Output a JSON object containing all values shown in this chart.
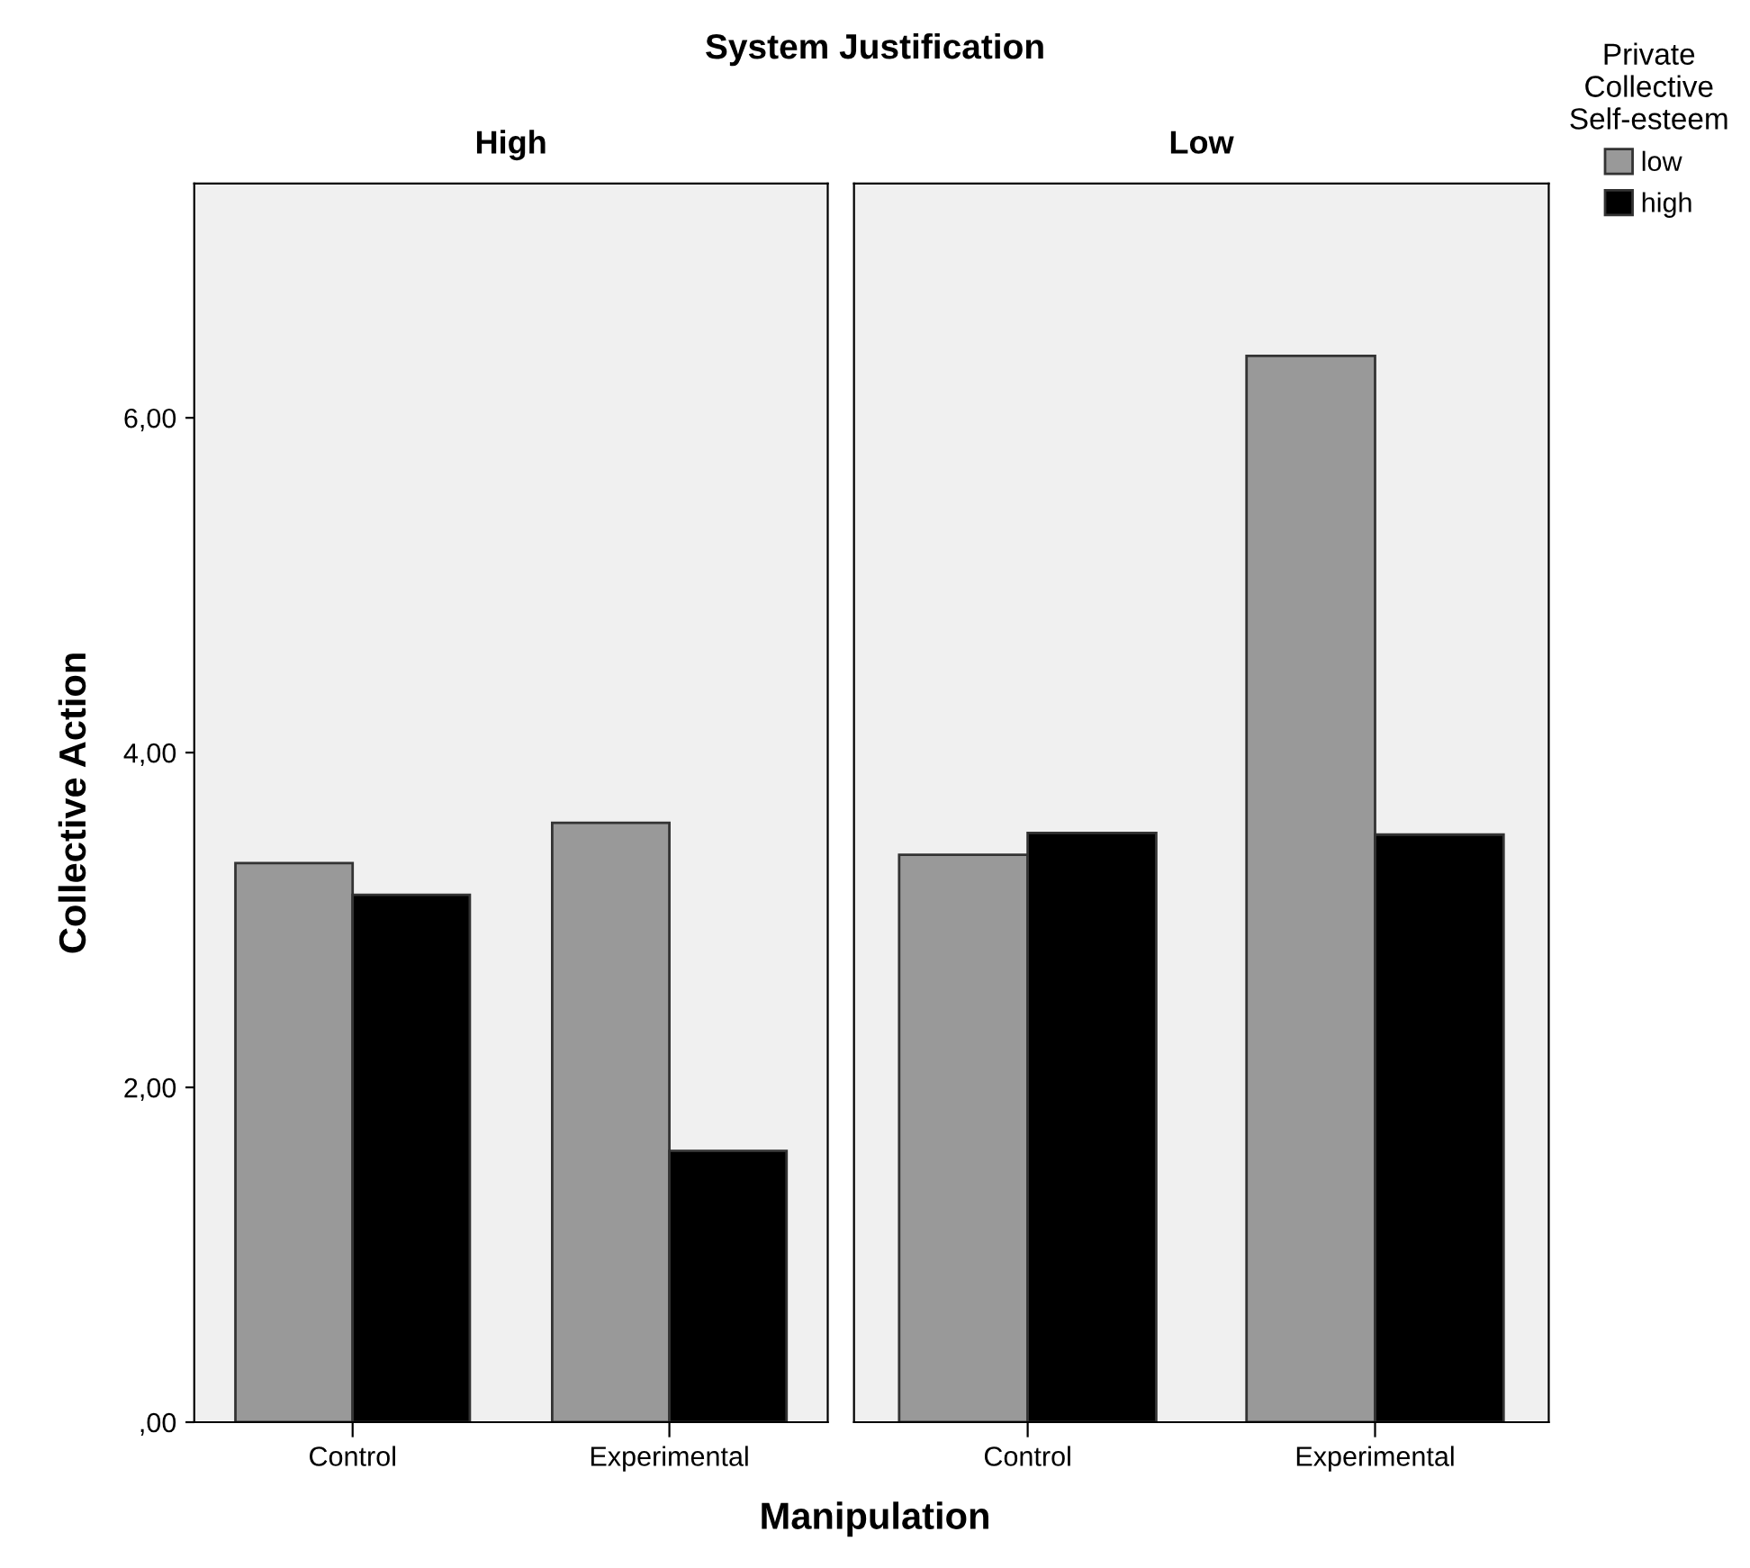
{
  "chart_data": [
    {
      "type": "bar",
      "title": "High",
      "annotations": [
        "System Justification"
      ],
      "xlabel": "Manipulation",
      "ylabel": "Collective Action",
      "categories": [
        "Control",
        "Experimental"
      ],
      "series": [
        {
          "name": "low",
          "color": "#999999",
          "values": [
            3.34,
            3.58
          ]
        },
        {
          "name": "high",
          "color": "#000000",
          "values": [
            3.15,
            1.62
          ]
        }
      ],
      "ylim": [
        0,
        7.4
      ],
      "yticks": [
        {
          "value": 0,
          "label": ",00"
        },
        {
          "value": 2,
          "label": "2,00"
        },
        {
          "value": 4,
          "label": "4,00"
        },
        {
          "value": 6,
          "label": "6,00"
        }
      ],
      "grid": false,
      "legend": "right",
      "legend_title": "Private\nCollective\nSelf-esteem"
    },
    {
      "type": "bar",
      "title": "Low",
      "categories": [
        "Control",
        "Experimental"
      ],
      "series": [
        {
          "color": "#999999",
          "values": [
            3.39,
            6.37
          ]
        },
        {
          "color": "#000000",
          "values": [
            3.52,
            3.51
          ]
        }
      ],
      "ylim": [
        0,
        7.4
      ],
      "tick_labels": "x",
      "grid": false
    }
  ]
}
